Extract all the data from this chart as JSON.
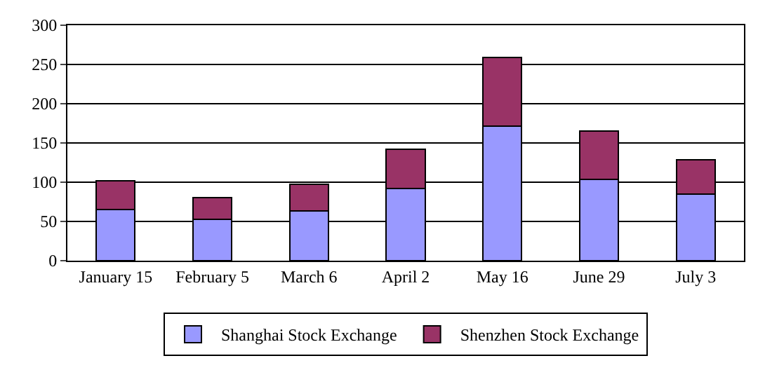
{
  "chart_data": {
    "type": "bar",
    "stacked": true,
    "categories": [
      "January 15",
      "February 5",
      "March 6",
      "April 2",
      "May 16",
      "June 29",
      "July 3"
    ],
    "series": [
      {
        "name": "Shanghai Stock Exchange",
        "color": "#9999ff",
        "values": [
          65,
          53,
          63,
          92,
          171,
          104,
          85
        ]
      },
      {
        "name": "Shenzhen Stock Exchange",
        "color": "#993366",
        "values": [
          37,
          27,
          34,
          50,
          88,
          61,
          44
        ]
      }
    ],
    "ylim": [
      0,
      300
    ],
    "yticks": [
      0,
      50,
      100,
      150,
      200,
      250,
      300
    ],
    "grid": "y",
    "legend": "bottom"
  }
}
